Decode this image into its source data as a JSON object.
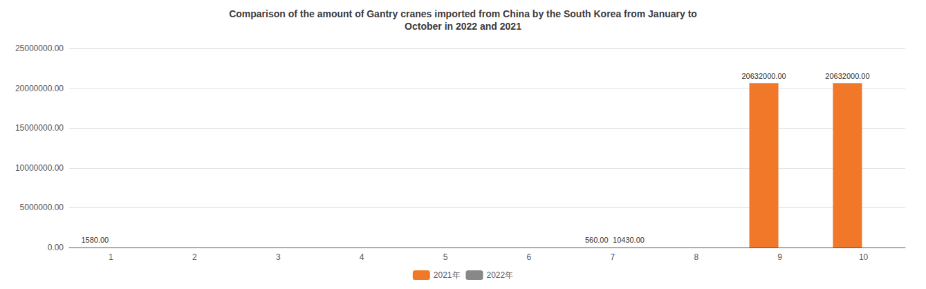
{
  "chart_data": {
    "type": "bar",
    "title": "Comparison of the amount of Gantry cranes imported from China by the South Korea from January to\nOctober in 2022 and 2021",
    "categories": [
      "1",
      "2",
      "3",
      "4",
      "5",
      "6",
      "7",
      "8",
      "9",
      "10"
    ],
    "series": [
      {
        "name": "2021年",
        "color": "#f07828",
        "values": [
          1580,
          0,
          0,
          0,
          0,
          0,
          560,
          0,
          20632000,
          20632000
        ],
        "value_labels": [
          "1580.00",
          null,
          null,
          null,
          null,
          null,
          "560.00",
          null,
          "20632000.00",
          "20632000.00"
        ]
      },
      {
        "name": "2022年",
        "color": "#888888",
        "values": [
          0,
          0,
          0,
          0,
          0,
          0,
          10430,
          0,
          0,
          0
        ],
        "value_labels": [
          null,
          null,
          null,
          null,
          null,
          null,
          "10430.00",
          null,
          null,
          null
        ]
      }
    ],
    "ylim": [
      0,
      25000000
    ],
    "yticks": [
      {
        "value": 0,
        "label": "0.00"
      },
      {
        "value": 5000000,
        "label": "5000000.00"
      },
      {
        "value": 10000000,
        "label": "10000000.00"
      },
      {
        "value": 15000000,
        "label": "15000000.00"
      },
      {
        "value": 20000000,
        "label": "20000000.00"
      },
      {
        "value": 25000000,
        "label": "25000000.00"
      }
    ],
    "grid": true,
    "legend": "bottom",
    "data_labels": true
  }
}
